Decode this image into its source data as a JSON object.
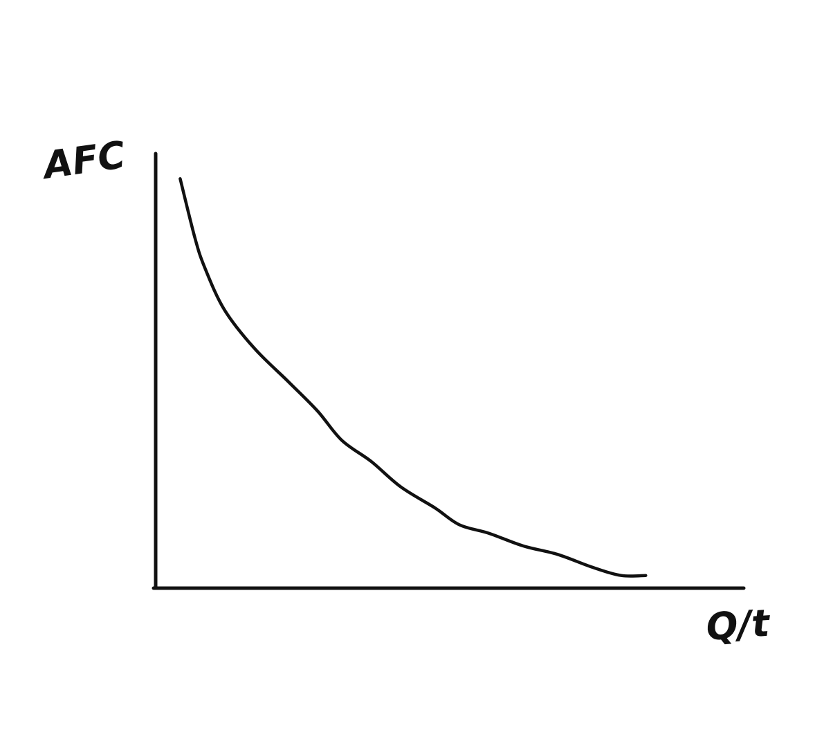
{
  "chart_data": {
    "type": "line",
    "ylabel": "AFC",
    "xlabel": "Q/t",
    "grid": false,
    "legend": "none",
    "line_color": "#111111",
    "series": [
      {
        "x": [
          0.05,
          0.08,
          0.1,
          0.14,
          0.2,
          0.27,
          0.33,
          0.38,
          0.44,
          0.5,
          0.57,
          0.62,
          0.68,
          0.75,
          0.82,
          0.89,
          0.95,
          1.0
        ],
        "y": [
          0.97,
          0.83,
          0.76,
          0.66,
          0.57,
          0.49,
          0.42,
          0.35,
          0.3,
          0.24,
          0.19,
          0.15,
          0.13,
          0.1,
          0.08,
          0.05,
          0.03,
          0.03
        ]
      }
    ],
    "xlim": [
      0,
      1.2
    ],
    "ylim": [
      0,
      1.0
    ]
  }
}
